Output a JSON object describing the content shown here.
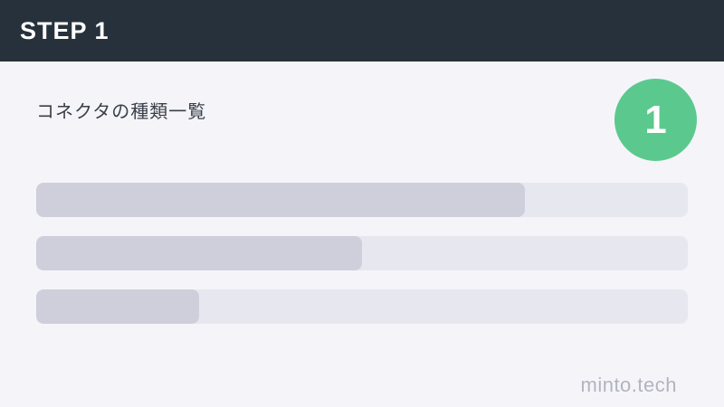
{
  "header": {
    "step_label": "STEP 1",
    "bg_color": "#27313c",
    "text_color": "#ffffff"
  },
  "content": {
    "title": "コネクタの種類一覧",
    "step_badge": {
      "number": "1",
      "color": "#5bc98e"
    }
  },
  "placeholder_bars": {
    "track_color": "#e7e7ef",
    "fill_color": "#cfcfdc",
    "items": [
      {
        "fill_percent": 75
      },
      {
        "fill_percent": 50
      },
      {
        "fill_percent": 25
      }
    ]
  },
  "footer": {
    "watermark": "minto.tech"
  }
}
